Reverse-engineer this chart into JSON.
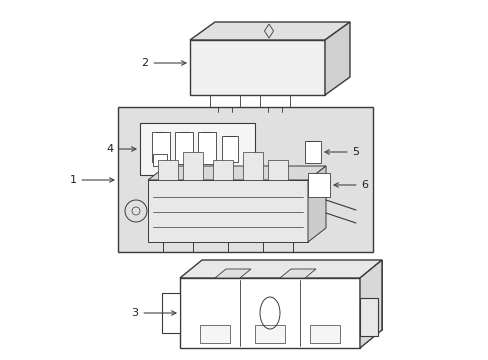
{
  "bg_color": "#ffffff",
  "line_color": "#3a3a3a",
  "shade_color": "#e0e0e0",
  "inner_shade": "#d8d8d8",
  "white": "#ffffff",
  "labels": [
    "1",
    "2",
    "3",
    "4",
    "5",
    "6"
  ],
  "label_fontsize": 8,
  "arrow_lw": 0.8
}
